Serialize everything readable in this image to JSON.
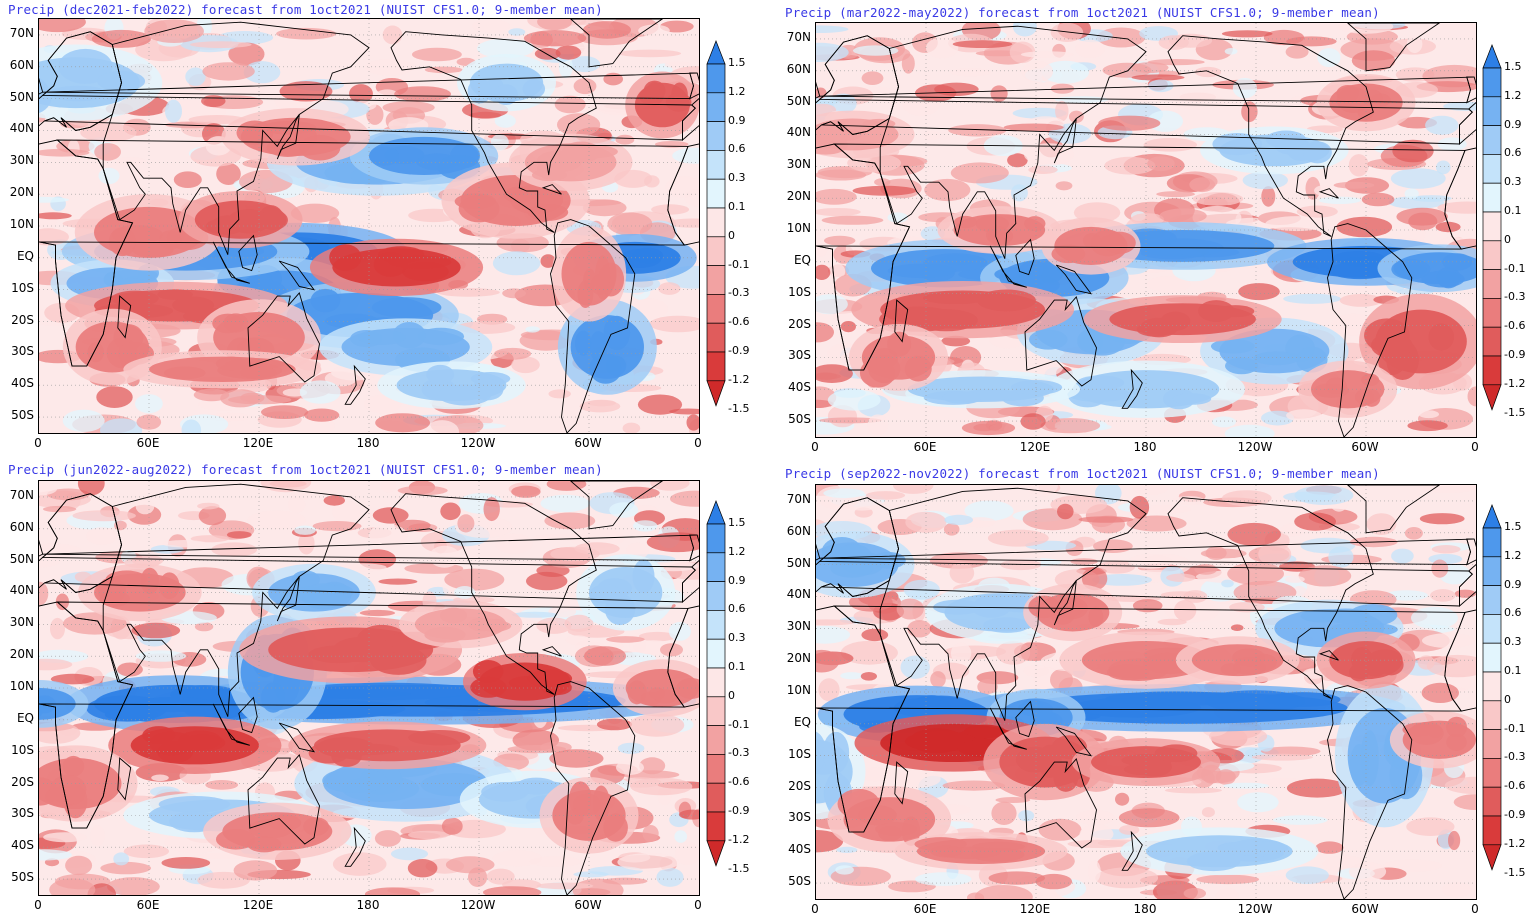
{
  "panels": [
    {
      "title": "Precip (dec2021-feb2022) forecast from 1oct2021 (NUIST CFS1.0; 9-member mean)",
      "season": "djf"
    },
    {
      "title": "Precip (mar2022-may2022) forecast from 1oct2021 (NUIST CFS1.0; 9-member mean)",
      "season": "mam"
    },
    {
      "title": "Precip (jun2022-aug2022) forecast from 1oct2021 (NUIST CFS1.0; 9-member mean)",
      "season": "jja"
    },
    {
      "title": "Precip (sep2022-nov2022) forecast from 1oct2021 (NUIST CFS1.0; 9-member mean)",
      "season": "son"
    }
  ],
  "axes": {
    "lat_labels": [
      "70N",
      "60N",
      "50N",
      "40N",
      "30N",
      "20N",
      "10N",
      "EQ",
      "10S",
      "20S",
      "30S",
      "40S",
      "50S"
    ],
    "lon_labels": [
      "0",
      "60E",
      "120E",
      "180",
      "120W",
      "60W",
      "0"
    ]
  },
  "colorbar": {
    "labels": [
      "1.5",
      "1.2",
      "0.9",
      "0.6",
      "0.3",
      "0.1",
      "0",
      "-0.1",
      "-0.3",
      "-0.6",
      "-0.9",
      "-1.2",
      "-1.5"
    ],
    "colors": [
      "#2d7fe6",
      "#4e98ec",
      "#76b2f2",
      "#9fcbf6",
      "#c4e3fa",
      "#e2f5fd",
      "#fde7e7",
      "#f9c8c8",
      "#f2a2a2",
      "#ea7d7d",
      "#e05c5c",
      "#d93b3b",
      "#cf2a2a"
    ]
  }
}
